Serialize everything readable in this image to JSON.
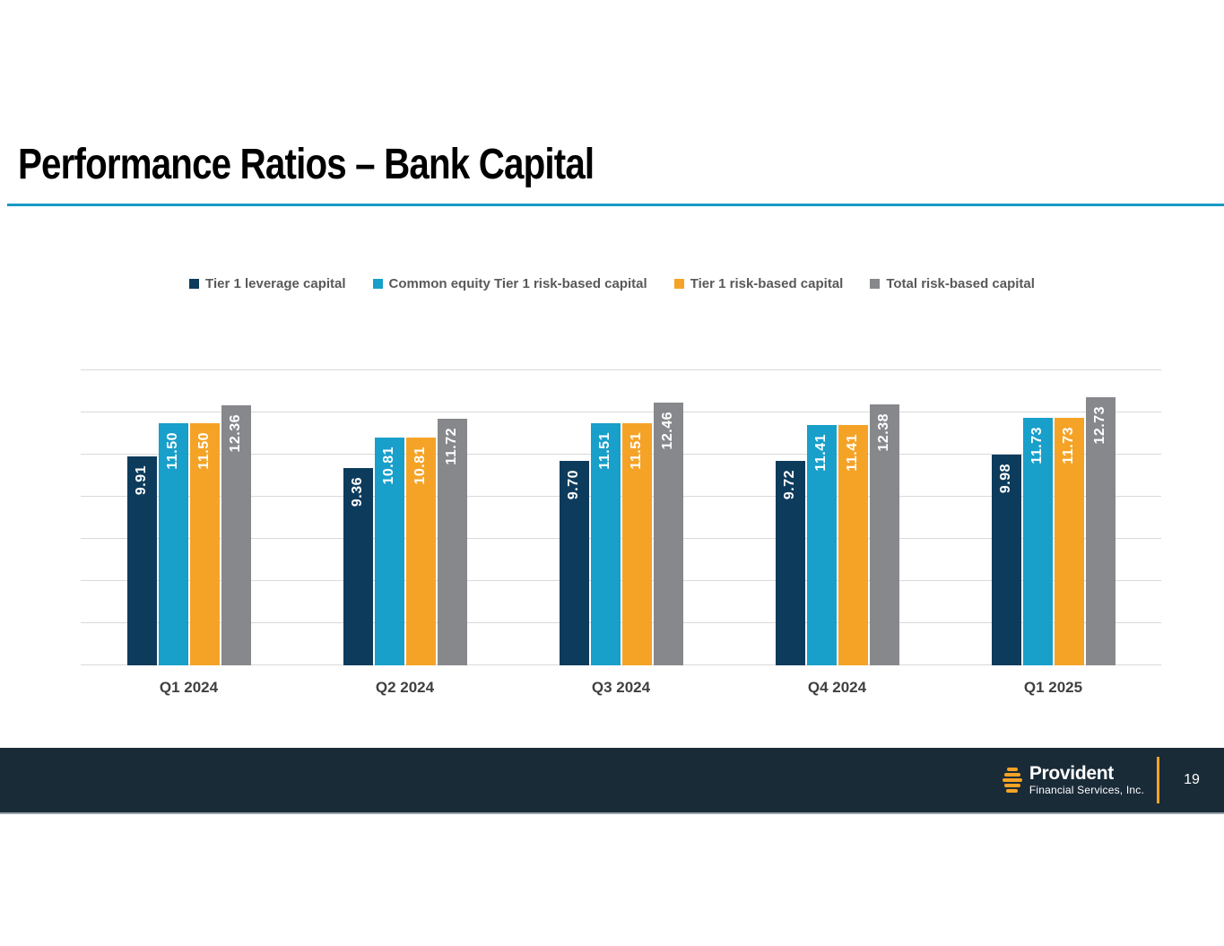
{
  "slide": {
    "title": "Performance Ratios – Bank Capital"
  },
  "colors": {
    "title_rule": "#189ac4",
    "footer_bg": "#1a2b38",
    "logo_orange": "#f5a326",
    "gridline": "#d9d9d9",
    "legend_text": "#595959",
    "axis_text": "#3f4042"
  },
  "footer": {
    "logo_name": "Provident",
    "logo_subtitle": "Financial Services, Inc.",
    "page_number": "19"
  },
  "chart_data": {
    "type": "bar",
    "title": "",
    "xlabel": "",
    "ylabel": "",
    "categories": [
      "Q1 2024",
      "Q2 2024",
      "Q3 2024",
      "Q4 2024",
      "Q1 2025"
    ],
    "series": [
      {
        "name": "Tier 1 leverage capital",
        "color": "#0d3b5c",
        "values": [
          9.91,
          9.36,
          9.7,
          9.72,
          9.98
        ]
      },
      {
        "name": "Common equity Tier 1 risk-based capital",
        "color": "#189fca",
        "values": [
          11.5,
          10.81,
          11.51,
          11.41,
          11.73
        ]
      },
      {
        "name": "Tier 1 risk-based capital",
        "color": "#f5a326",
        "values": [
          11.5,
          10.81,
          11.51,
          11.41,
          11.73
        ]
      },
      {
        "name": "Total risk-based capital",
        "color": "#86888b",
        "values": [
          12.36,
          11.72,
          12.46,
          12.38,
          12.73
        ]
      }
    ],
    "ylim": [
      0,
      14
    ],
    "grid_step": 2,
    "grid": true,
    "legend_position": "top",
    "value_labels": "inside-top, rotated 90, 2 decimals"
  }
}
